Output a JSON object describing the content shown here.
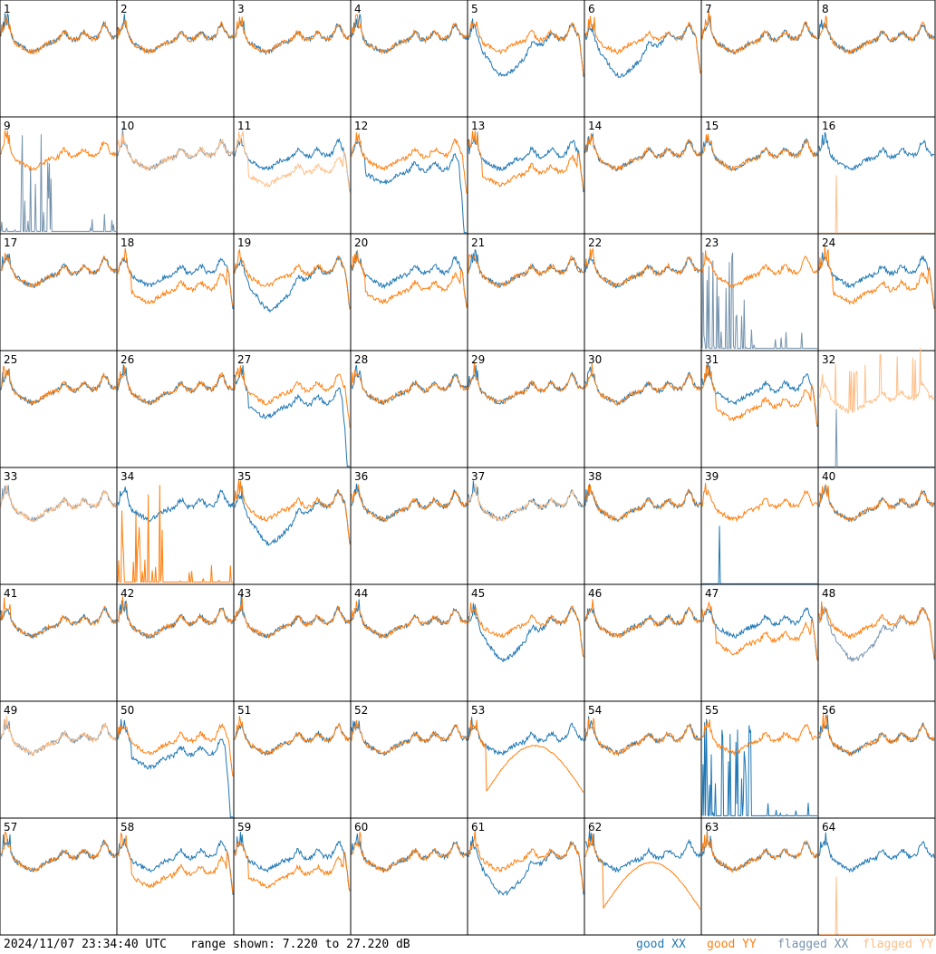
{
  "footer": {
    "timestamp": "2024/11/07 23:34:40 UTC",
    "range_text": "range shown: 7.220 to 27.220 dB",
    "legend": {
      "good_xx": "good XX",
      "good_yy": "good YY",
      "flagged_xx": "flagged XX",
      "flagged_yy": "flagged YY"
    }
  },
  "colors": {
    "good_xx": "#1f77b4",
    "good_yy": "#ff7f0e",
    "flagged_xx": "#7593ad",
    "flagged_yy": "#ffbe86",
    "grid": "#000000"
  },
  "chart_data": {
    "type": "line",
    "layout": "8x8 small multiples",
    "y_range_db": [
      7.22,
      27.22
    ],
    "units": "dB",
    "panels": [
      {
        "id": "1",
        "xx": "good",
        "yy": "good",
        "shape": "normal"
      },
      {
        "id": "2",
        "xx": "good",
        "yy": "good",
        "shape": "normal"
      },
      {
        "id": "3",
        "xx": "good",
        "yy": "good",
        "shape": "normal"
      },
      {
        "id": "4",
        "xx": "good",
        "yy": "good",
        "shape": "normal"
      },
      {
        "id": "5",
        "xx": "good",
        "yy": "good",
        "shape": "xx_dip"
      },
      {
        "id": "6",
        "xx": "good",
        "yy": "good",
        "shape": "xx_dip"
      },
      {
        "id": "7",
        "xx": "good",
        "yy": "good",
        "shape": "normal"
      },
      {
        "id": "8",
        "xx": "good",
        "yy": "good",
        "shape": "normal"
      },
      {
        "id": "9",
        "xx": "flagged",
        "yy": "good",
        "shape": "spikes_xx"
      },
      {
        "id": "10",
        "xx": "flagged",
        "yy": "flagged",
        "shape": "normal"
      },
      {
        "id": "11",
        "xx": "good",
        "yy": "flagged",
        "shape": "yy_low"
      },
      {
        "id": "12",
        "xx": "good",
        "yy": "good",
        "shape": "xx_low_drop"
      },
      {
        "id": "13",
        "xx": "good",
        "yy": "good",
        "shape": "yy_low"
      },
      {
        "id": "14",
        "xx": "good",
        "yy": "good",
        "shape": "normal"
      },
      {
        "id": "15",
        "xx": "good",
        "yy": "good",
        "shape": "normal"
      },
      {
        "id": "16",
        "xx": "good",
        "yy": "flagged",
        "shape": "spike_yy"
      },
      {
        "id": "17",
        "xx": "good",
        "yy": "good",
        "shape": "normal"
      },
      {
        "id": "18",
        "xx": "good",
        "yy": "good",
        "shape": "yy_low"
      },
      {
        "id": "19",
        "xx": "good",
        "yy": "good",
        "shape": "xx_dip"
      },
      {
        "id": "20",
        "xx": "good",
        "yy": "good",
        "shape": "yy_low"
      },
      {
        "id": "21",
        "xx": "good",
        "yy": "good",
        "shape": "normal"
      },
      {
        "id": "22",
        "xx": "good",
        "yy": "good",
        "shape": "normal"
      },
      {
        "id": "23",
        "xx": "flagged",
        "yy": "good",
        "shape": "spikes_xx"
      },
      {
        "id": "24",
        "xx": "good",
        "yy": "good",
        "shape": "yy_low"
      },
      {
        "id": "25",
        "xx": "good",
        "yy": "good",
        "shape": "normal"
      },
      {
        "id": "26",
        "xx": "good",
        "yy": "good",
        "shape": "normal"
      },
      {
        "id": "27",
        "xx": "good",
        "yy": "good",
        "shape": "xx_low_drop"
      },
      {
        "id": "28",
        "xx": "good",
        "yy": "good",
        "shape": "normal"
      },
      {
        "id": "29",
        "xx": "good",
        "yy": "good",
        "shape": "normal"
      },
      {
        "id": "30",
        "xx": "good",
        "yy": "good",
        "shape": "normal"
      },
      {
        "id": "31",
        "xx": "good",
        "yy": "good",
        "shape": "yy_low"
      },
      {
        "id": "32",
        "xx": "flagged",
        "yy": "flagged",
        "shape": "spiky_yy"
      },
      {
        "id": "33",
        "xx": "flagged",
        "yy": "flagged",
        "shape": "normal"
      },
      {
        "id": "34",
        "xx": "good",
        "yy": "good",
        "shape": "spikes_yy"
      },
      {
        "id": "35",
        "xx": "good",
        "yy": "good",
        "shape": "xx_dip"
      },
      {
        "id": "36",
        "xx": "good",
        "yy": "good",
        "shape": "normal"
      },
      {
        "id": "37",
        "xx": "good",
        "yy": "flagged",
        "shape": "normal"
      },
      {
        "id": "38",
        "xx": "good",
        "yy": "good",
        "shape": "normal"
      },
      {
        "id": "39",
        "xx": "good",
        "yy": "good",
        "shape": "spike_xx"
      },
      {
        "id": "40",
        "xx": "good",
        "yy": "good",
        "shape": "normal"
      },
      {
        "id": "41",
        "xx": "good",
        "yy": "good",
        "shape": "normal"
      },
      {
        "id": "42",
        "xx": "good",
        "yy": "good",
        "shape": "normal"
      },
      {
        "id": "43",
        "xx": "good",
        "yy": "good",
        "shape": "normal"
      },
      {
        "id": "44",
        "xx": "good",
        "yy": "good",
        "shape": "normal"
      },
      {
        "id": "45",
        "xx": "good",
        "yy": "good",
        "shape": "xx_dip"
      },
      {
        "id": "46",
        "xx": "good",
        "yy": "good",
        "shape": "normal"
      },
      {
        "id": "47",
        "xx": "good",
        "yy": "good",
        "shape": "yy_low"
      },
      {
        "id": "48",
        "xx": "flagged",
        "yy": "good",
        "shape": "xx_dip"
      },
      {
        "id": "49",
        "xx": "flagged",
        "yy": "flagged",
        "shape": "normal"
      },
      {
        "id": "50",
        "xx": "good",
        "yy": "good",
        "shape": "xx_low_drop"
      },
      {
        "id": "51",
        "xx": "good",
        "yy": "good",
        "shape": "normal"
      },
      {
        "id": "52",
        "xx": "good",
        "yy": "good",
        "shape": "normal"
      },
      {
        "id": "53",
        "xx": "good",
        "yy": "good",
        "shape": "yy_arc"
      },
      {
        "id": "54",
        "xx": "good",
        "yy": "good",
        "shape": "normal"
      },
      {
        "id": "55",
        "xx": "good",
        "yy": "good",
        "shape": "spikes_xx"
      },
      {
        "id": "56",
        "xx": "good",
        "yy": "good",
        "shape": "normal"
      },
      {
        "id": "57",
        "xx": "good",
        "yy": "good",
        "shape": "normal"
      },
      {
        "id": "58",
        "xx": "good",
        "yy": "good",
        "shape": "yy_low"
      },
      {
        "id": "59",
        "xx": "good",
        "yy": "good",
        "shape": "yy_low"
      },
      {
        "id": "60",
        "xx": "good",
        "yy": "good",
        "shape": "normal"
      },
      {
        "id": "61",
        "xx": "good",
        "yy": "good",
        "shape": "xx_dip"
      },
      {
        "id": "62",
        "xx": "good",
        "yy": "good",
        "shape": "yy_arc"
      },
      {
        "id": "63",
        "xx": "good",
        "yy": "good",
        "shape": "normal"
      },
      {
        "id": "64",
        "xx": "good",
        "yy": "flagged",
        "shape": "spike_yy"
      }
    ]
  }
}
